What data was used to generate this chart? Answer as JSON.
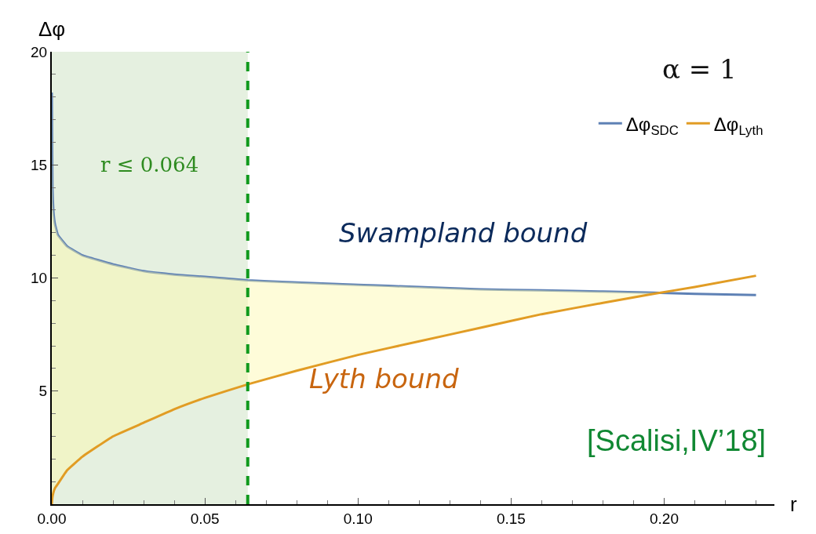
{
  "chart_data": {
    "type": "line",
    "xlabel": "r",
    "ylabel": "Δφ",
    "xlim": [
      0,
      0.236
    ],
    "xticks": [
      {
        "value": 0,
        "label": "0.00"
      },
      {
        "value": 0.05,
        "label": "0.05"
      },
      {
        "value": 0.1,
        "label": "0.10"
      },
      {
        "value": 0.15,
        "label": "0.15"
      },
      {
        "value": 0.2,
        "label": "0.20"
      }
    ],
    "ylim": [
      0,
      20
    ],
    "yticks": [
      5,
      10,
      15,
      20
    ],
    "grid": false,
    "legend": "top right",
    "line_style": "solid",
    "marker": "none",
    "x": [
      0,
      0.0002,
      0.0005,
      0.001,
      0.002,
      0.005,
      0.01,
      0.02,
      0.03,
      0.04,
      0.05,
      0.064,
      0.08,
      0.1,
      0.12,
      0.14,
      0.16,
      0.18,
      0.1965,
      0.21,
      0.23
    ],
    "series": [
      {
        "name": "Δφ$_{SDC}$",
        "color": "#5e81b5",
        "values": [
          18.2,
          14.0,
          13.0,
          12.4,
          11.9,
          11.4,
          11.0,
          10.6,
          10.3,
          10.15,
          10.05,
          9.9,
          9.8,
          9.7,
          9.6,
          9.5,
          9.45,
          9.4,
          9.35,
          9.3,
          9.25
        ]
      },
      {
        "name": "Δφ$_{Lyth}$",
        "color": "#e19c24",
        "values": [
          0,
          0.3,
          0.5,
          0.7,
          0.9,
          1.5,
          2.1,
          3.0,
          3.6,
          4.2,
          4.7,
          5.3,
          5.9,
          6.6,
          7.2,
          7.8,
          8.4,
          8.9,
          9.3,
          9.6,
          10.1
        ],
        "lower": [
          0,
          0.3,
          0.5,
          0.7,
          0.9,
          1.5,
          2.1,
          3.0,
          3.6,
          4.2,
          4.7,
          5.3,
          5.9,
          6.6,
          7.2,
          7.8,
          8.4,
          8.9,
          9.3,
          null,
          null
        ],
        "upper": [
          18.2,
          14.0,
          13.0,
          12.4,
          11.9,
          11.4,
          11.0,
          10.6,
          10.3,
          10.15,
          10.05,
          9.9,
          9.8,
          9.7,
          9.6,
          9.5,
          9.45,
          9.4,
          9.35,
          null,
          null
        ]
      }
    ],
    "bands": [
      {
        "axis": "x",
        "from": 0,
        "to": 0.064,
        "label": "r ≤ 0.064",
        "color": "#e5f0e0"
      }
    ],
    "ref_lines": [
      {
        "axis": "x",
        "value": 0.064,
        "color": "#119a1e",
        "line_style": "dashed"
      }
    ],
    "annotations": [
      "α = 1",
      "Swampland bound",
      "Lyth bound",
      "[Scalisi,IV’18]"
    ]
  }
}
